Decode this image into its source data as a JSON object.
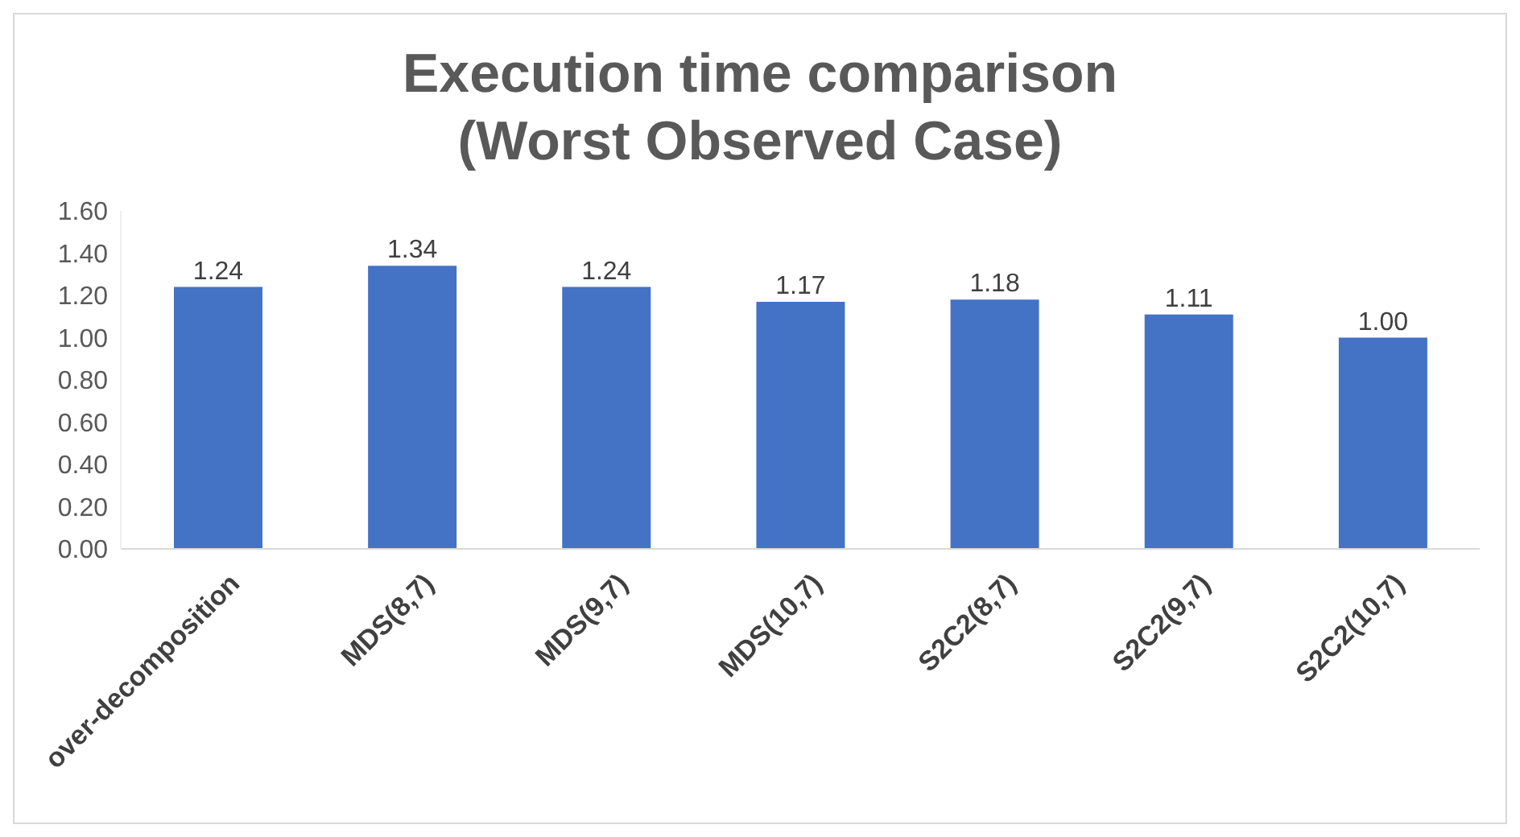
{
  "chart_data": {
    "type": "bar",
    "title": "Execution time comparison\n(Worst Observed Case)",
    "categories": [
      "over-decomposition",
      "MDS(8,7)",
      "MDS(9,7)",
      "MDS(10,7)",
      "S2C2(8,7)",
      "S2C2(9,7)",
      "S2C2(10,7)"
    ],
    "values": [
      1.24,
      1.34,
      1.24,
      1.17,
      1.18,
      1.11,
      1.0
    ],
    "value_labels": [
      "1.24",
      "1.34",
      "1.24",
      "1.17",
      "1.18",
      "1.11",
      "1.00"
    ],
    "color": "#4472c4",
    "ylim": [
      0,
      1.6
    ],
    "yticks": [
      {
        "value": 0,
        "label": "0.00"
      },
      {
        "value": 0.2,
        "label": "0.20"
      },
      {
        "value": 0.4,
        "label": "0.40"
      },
      {
        "value": 0.6,
        "label": "0.60"
      },
      {
        "value": 0.8,
        "label": "0.80"
      },
      {
        "value": 1,
        "label": "1.00"
      },
      {
        "value": 1.2,
        "label": "1.20"
      },
      {
        "value": 1.4,
        "label": "1.40"
      },
      {
        "value": 1.6,
        "label": "1.60"
      }
    ],
    "grid": false,
    "legend": false
  }
}
